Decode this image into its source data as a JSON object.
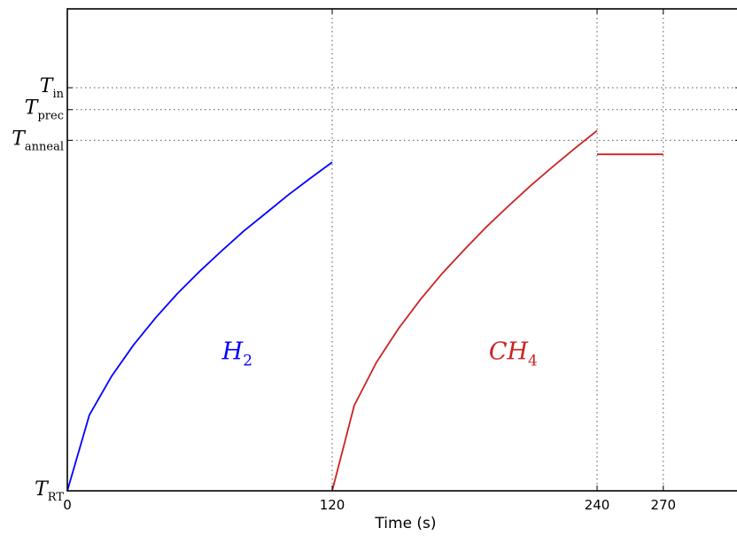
{
  "chart_data": {
    "type": "line",
    "title": "",
    "xlabel": "Time (s)",
    "ylabel": "",
    "xlim": [
      0,
      305
    ],
    "ylim": [
      0,
      1.1
    ],
    "grid": "dotted reference lines at ticks",
    "x_ticks": [
      {
        "value": 0,
        "label": "0"
      },
      {
        "value": 120,
        "label": "120"
      },
      {
        "value": 240,
        "label": "240"
      },
      {
        "value": 270,
        "label": "270"
      }
    ],
    "y_ticks": [
      {
        "value": 0,
        "main": "T",
        "sub": "RT"
      },
      {
        "value": 0.8,
        "main": "T",
        "sub": "anneal"
      },
      {
        "value": 0.87,
        "main": "T",
        "sub": "prec"
      },
      {
        "value": 0.92,
        "main": "T",
        "sub": "in"
      }
    ],
    "vgrid_x": [
      120,
      240,
      270
    ],
    "hgrid_y": [
      0.8,
      0.87,
      0.92
    ],
    "series": [
      {
        "color": "#0000ff",
        "x": [
          0,
          10,
          20,
          30,
          40,
          50,
          60,
          70,
          80,
          90,
          100,
          110,
          120
        ],
        "y": [
          0,
          0.173,
          0.261,
          0.333,
          0.395,
          0.451,
          0.501,
          0.548,
          0.593,
          0.634,
          0.675,
          0.713,
          0.75
        ]
      },
      {
        "color": "#cc2222",
        "x": [
          120,
          130,
          140,
          150,
          160,
          170,
          180,
          190,
          200,
          210,
          220,
          230,
          240
        ],
        "y": [
          0,
          0.195,
          0.293,
          0.37,
          0.437,
          0.497,
          0.551,
          0.603,
          0.651,
          0.697,
          0.74,
          0.782,
          0.822
        ]
      },
      {
        "color": "#cc2222",
        "x": [
          240,
          270
        ],
        "y": [
          0.768,
          0.768
        ]
      }
    ],
    "annotations": [
      {
        "main": "H",
        "sub": "2",
        "x": 77,
        "y": 0.3,
        "color": "#0000ff"
      },
      {
        "main": "CH",
        "sub": "4",
        "x": 202,
        "y": 0.3,
        "color": "#cc2222"
      }
    ]
  }
}
